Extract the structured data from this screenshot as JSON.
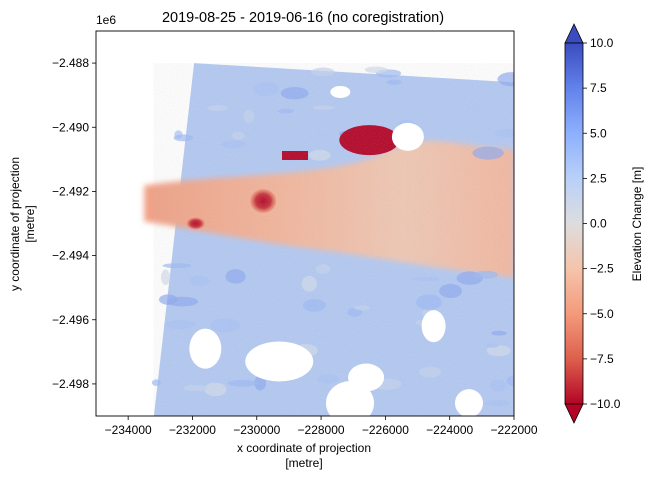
{
  "chart_data": {
    "type": "heatmap",
    "title": "2019-08-25 - 2019-06-16 (no coregistration)",
    "xlabel": "x coordinate of projection",
    "xlabel_unit": "[metre]",
    "ylabel": "y coordinate of projection",
    "ylabel_unit": "[metre]",
    "y_offset_label": "1e6",
    "xlim": [
      -235000,
      -222000
    ],
    "ylim": [
      -2.499,
      -2.487
    ],
    "x_ticks": [
      -234000,
      -232000,
      -230000,
      -228000,
      -226000,
      -224000,
      -222000
    ],
    "x_tick_labels": [
      "−234000",
      "−232000",
      "−230000",
      "−228000",
      "−226000",
      "−224000",
      "−222000"
    ],
    "y_ticks": [
      -2.488,
      -2.49,
      -2.492,
      -2.494,
      -2.496,
      -2.498
    ],
    "y_tick_labels": [
      "−2.488",
      "−2.490",
      "−2.492",
      "−2.494",
      "−2.496",
      "−2.498"
    ],
    "data_footprint_corners": [
      [
        -233200,
        -2.499
      ],
      [
        -231950,
        -2.488
      ],
      [
        -222000,
        -2.4886
      ],
      [
        -222000,
        -2.499
      ]
    ],
    "features": [
      {
        "kind": "glacier-lowering-band",
        "x_range": [
          -233500,
          -222000
        ],
        "y_center": -2.4925,
        "value_range": [
          -5,
          -1
        ]
      },
      {
        "kind": "strong-lowering-spot",
        "x": -229800,
        "y": -2.4923,
        "value": -10
      },
      {
        "kind": "strong-lowering-spot",
        "x": -231900,
        "y": -2.493,
        "value": -9
      },
      {
        "kind": "strong-lowering-patch",
        "x": -226500,
        "y": -2.4904,
        "value": -10
      },
      {
        "kind": "stable-terrain",
        "value_range": [
          0,
          4
        ]
      }
    ],
    "nodata_holes": [
      {
        "x": -227400,
        "y": -2.4889
      },
      {
        "x": -225300,
        "y": -2.4903
      },
      {
        "x": -229300,
        "y": -2.4973
      },
      {
        "x": -226600,
        "y": -2.4978
      },
      {
        "x": -231600,
        "y": -2.4969
      },
      {
        "x": -224500,
        "y": -2.4962
      },
      {
        "x": -227100,
        "y": -2.4986
      },
      {
        "x": -223400,
        "y": -2.4986
      }
    ],
    "colorbar": {
      "label": "Elevation Change [m]",
      "colormap": "coolwarm_r",
      "vmin": -10.0,
      "vmax": 10.0,
      "extend": "both",
      "ticks": [
        -10.0,
        -7.5,
        -5.0,
        -2.5,
        0.0,
        2.5,
        5.0,
        7.5,
        10.0
      ],
      "tick_labels": [
        "−10.0",
        "−7.5",
        "−5.0",
        "−2.5",
        "0.0",
        "2.5",
        "5.0",
        "7.5",
        "10.0"
      ],
      "colors": {
        "high": "#3b4cc0",
        "mid": "#dddddd",
        "low": "#b40426"
      }
    },
    "grid": false
  }
}
